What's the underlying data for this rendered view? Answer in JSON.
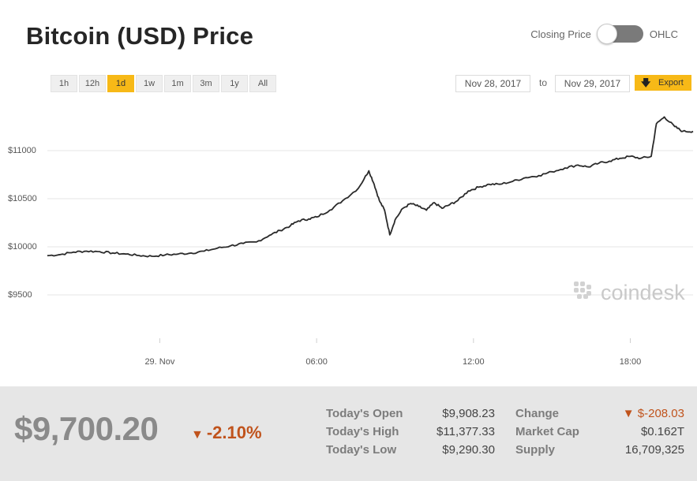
{
  "title": "Bitcoin (USD) Price",
  "toggle": {
    "left_label": "Closing Price",
    "right_label": "OHLC"
  },
  "ranges": [
    {
      "label": "1h",
      "active": false
    },
    {
      "label": "12h",
      "active": false
    },
    {
      "label": "1d",
      "active": true
    },
    {
      "label": "1w",
      "active": false
    },
    {
      "label": "1m",
      "active": false
    },
    {
      "label": "3m",
      "active": false
    },
    {
      "label": "1y",
      "active": false
    },
    {
      "label": "All",
      "active": false
    }
  ],
  "date_range": {
    "from": "Nov 28, 2017",
    "to_label": "to",
    "to": "Nov 29, 2017"
  },
  "export_label": "Export",
  "watermark": "coindesk",
  "colors": {
    "accent": "#f7b917",
    "line": "#2a2a2a",
    "negative": "#c0531c"
  },
  "chart_data": {
    "type": "line",
    "title": "",
    "xlabel": "",
    "ylabel": "",
    "x_unit": "hours since 29. Nov 00:00",
    "xlim": [
      -4.3,
      20.4
    ],
    "ylim": [
      9000,
      11500
    ],
    "y_ticks": [
      {
        "value": 9500,
        "label": "$9500"
      },
      {
        "value": 10000,
        "label": "$10000"
      },
      {
        "value": 10500,
        "label": "$10500"
      },
      {
        "value": 11000,
        "label": "$11000"
      }
    ],
    "x_ticks": [
      {
        "value": 0,
        "label": "29. Nov"
      },
      {
        "value": 6,
        "label": "06:00"
      },
      {
        "value": 12,
        "label": "12:00"
      },
      {
        "value": 18,
        "label": "18:00"
      }
    ],
    "grid": true,
    "series": [
      {
        "points": [
          [
            -4.3,
            9908
          ],
          [
            -3.8,
            9920
          ],
          [
            -3.3,
            9945
          ],
          [
            -2.8,
            9955
          ],
          [
            -2.3,
            9950
          ],
          [
            -1.8,
            9935
          ],
          [
            -1.3,
            9925
          ],
          [
            -0.8,
            9910
          ],
          [
            -0.3,
            9902
          ],
          [
            0.2,
            9915
          ],
          [
            0.7,
            9925
          ],
          [
            1.2,
            9935
          ],
          [
            1.7,
            9955
          ],
          [
            2.2,
            9985
          ],
          [
            2.7,
            10010
          ],
          [
            3.2,
            10035
          ],
          [
            3.7,
            10050
          ],
          [
            4.2,
            10120
          ],
          [
            4.6,
            10170
          ],
          [
            5.0,
            10220
          ],
          [
            5.3,
            10270
          ],
          [
            5.7,
            10290
          ],
          [
            6.0,
            10310
          ],
          [
            6.5,
            10380
          ],
          [
            7.0,
            10480
          ],
          [
            7.6,
            10610
          ],
          [
            8.0,
            10790
          ],
          [
            8.2,
            10650
          ],
          [
            8.4,
            10480
          ],
          [
            8.6,
            10380
          ],
          [
            8.8,
            10125
          ],
          [
            9.0,
            10280
          ],
          [
            9.3,
            10400
          ],
          [
            9.6,
            10450
          ],
          [
            9.9,
            10420
          ],
          [
            10.2,
            10380
          ],
          [
            10.5,
            10460
          ],
          [
            10.8,
            10400
          ],
          [
            11.1,
            10440
          ],
          [
            11.4,
            10480
          ],
          [
            11.8,
            10580
          ],
          [
            12.2,
            10620
          ],
          [
            12.6,
            10650
          ],
          [
            13.0,
            10650
          ],
          [
            13.5,
            10680
          ],
          [
            14.0,
            10720
          ],
          [
            14.5,
            10740
          ],
          [
            15.0,
            10780
          ],
          [
            15.5,
            10820
          ],
          [
            16.0,
            10850
          ],
          [
            16.4,
            10830
          ],
          [
            16.8,
            10870
          ],
          [
            17.2,
            10890
          ],
          [
            17.6,
            10920
          ],
          [
            18.0,
            10940
          ],
          [
            18.4,
            10920
          ],
          [
            18.8,
            10940
          ],
          [
            19.0,
            11280
          ],
          [
            19.3,
            11350
          ],
          [
            19.7,
            11250
          ],
          [
            20.0,
            11200
          ],
          [
            20.4,
            11200
          ]
        ]
      }
    ]
  },
  "summary": {
    "price": "$9,700.20",
    "change_pct": "-2.10%",
    "change_arrow": "▼",
    "stats_left": [
      {
        "label": "Today's Open",
        "value": "$9,908.23"
      },
      {
        "label": "Today's High",
        "value": "$11,377.33"
      },
      {
        "label": "Today's Low",
        "value": "$9,290.30"
      }
    ],
    "stats_right": [
      {
        "label": "Change",
        "value": "▼ $-208.03",
        "negative": true
      },
      {
        "label": "Market Cap",
        "value": "$0.162T",
        "negative": false
      },
      {
        "label": "Supply",
        "value": "16,709,325",
        "negative": false
      }
    ]
  }
}
